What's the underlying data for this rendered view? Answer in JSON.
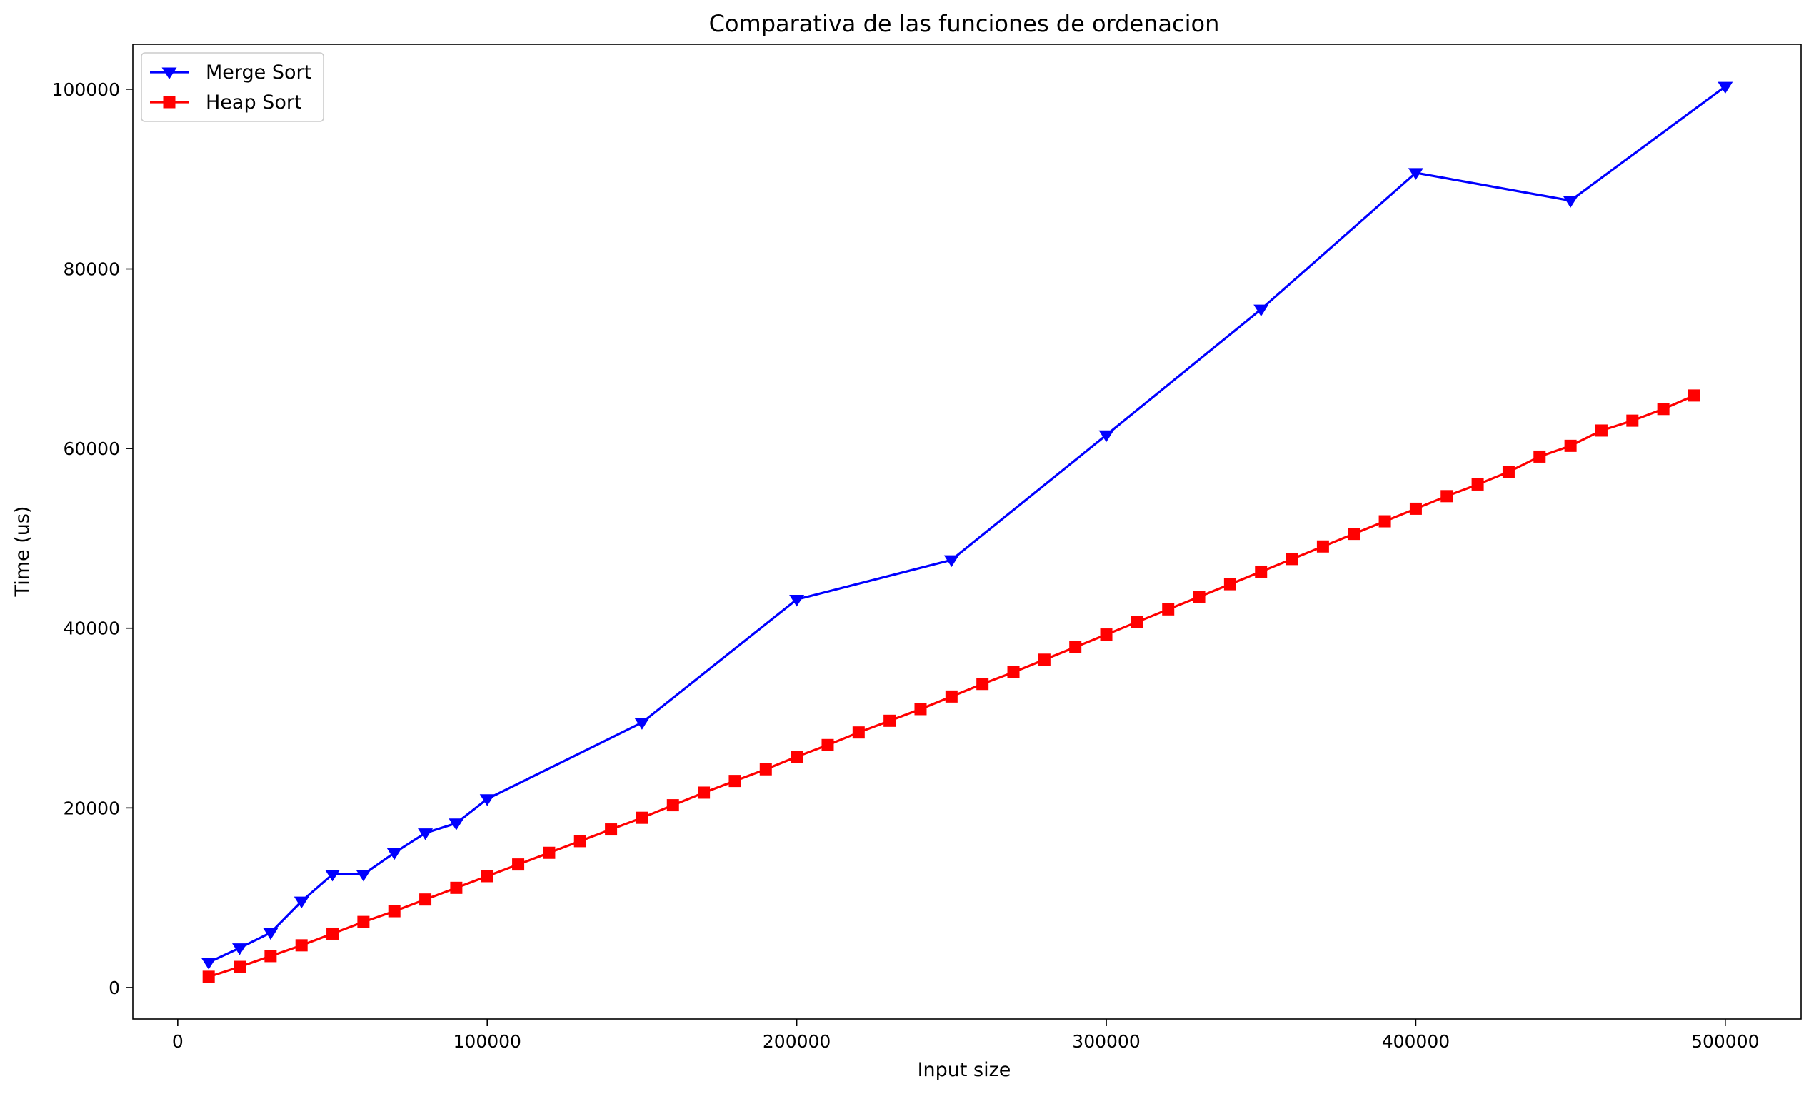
{
  "chart_data": {
    "type": "line",
    "title": "Comparativa de las funciones de ordenacion",
    "xlabel": "Input size",
    "ylabel": "Time (us)",
    "xlim": [
      -14500,
      524500
    ],
    "ylim": [
      -3500,
      105000
    ],
    "xticks": [
      0,
      100000,
      200000,
      300000,
      400000,
      500000
    ],
    "xtick_labels": [
      "0",
      "100000",
      "200000",
      "300000",
      "400000",
      "500000"
    ],
    "yticks": [
      0,
      20000,
      40000,
      60000,
      80000,
      100000
    ],
    "ytick_labels": [
      "0",
      "20000",
      "40000",
      "60000",
      "80000",
      "100000"
    ],
    "grid": false,
    "legend_position": "top-left",
    "series": [
      {
        "name": "Merge Sort",
        "color": "#0000ff",
        "marker": "triangle-down",
        "x": [
          10000,
          20000,
          30000,
          40000,
          50000,
          60000,
          70000,
          80000,
          90000,
          100000,
          150000,
          200000,
          250000,
          300000,
          350000,
          400000,
          450000,
          500000
        ],
        "y": [
          2800,
          4400,
          6100,
          9600,
          12600,
          12600,
          15000,
          17200,
          18300,
          21000,
          29500,
          43200,
          47600,
          61500,
          75500,
          90700,
          87600,
          100300
        ]
      },
      {
        "name": "Heap Sort",
        "color": "#ff0000",
        "marker": "square",
        "x": [
          10000,
          20000,
          30000,
          40000,
          50000,
          60000,
          70000,
          80000,
          90000,
          100000,
          110000,
          120000,
          130000,
          140000,
          150000,
          160000,
          170000,
          180000,
          190000,
          200000,
          210000,
          220000,
          230000,
          240000,
          250000,
          260000,
          270000,
          280000,
          290000,
          300000,
          310000,
          320000,
          330000,
          340000,
          350000,
          360000,
          370000,
          380000,
          390000,
          400000,
          410000,
          420000,
          430000,
          440000,
          450000,
          460000,
          470000,
          480000,
          490000
        ],
        "y": [
          1200,
          2300,
          3500,
          4700,
          6000,
          7300,
          8500,
          9800,
          11100,
          12400,
          13700,
          15000,
          16300,
          17600,
          18900,
          20300,
          21700,
          23000,
          24300,
          25700,
          27000,
          28400,
          29700,
          31000,
          32400,
          33800,
          35100,
          36500,
          37900,
          39300,
          40700,
          42100,
          43500,
          44900,
          46300,
          47700,
          49100,
          50500,
          51900,
          53300,
          54700,
          56000,
          57400,
          59100,
          60300,
          62000,
          63100,
          64400,
          65900
        ]
      }
    ]
  }
}
